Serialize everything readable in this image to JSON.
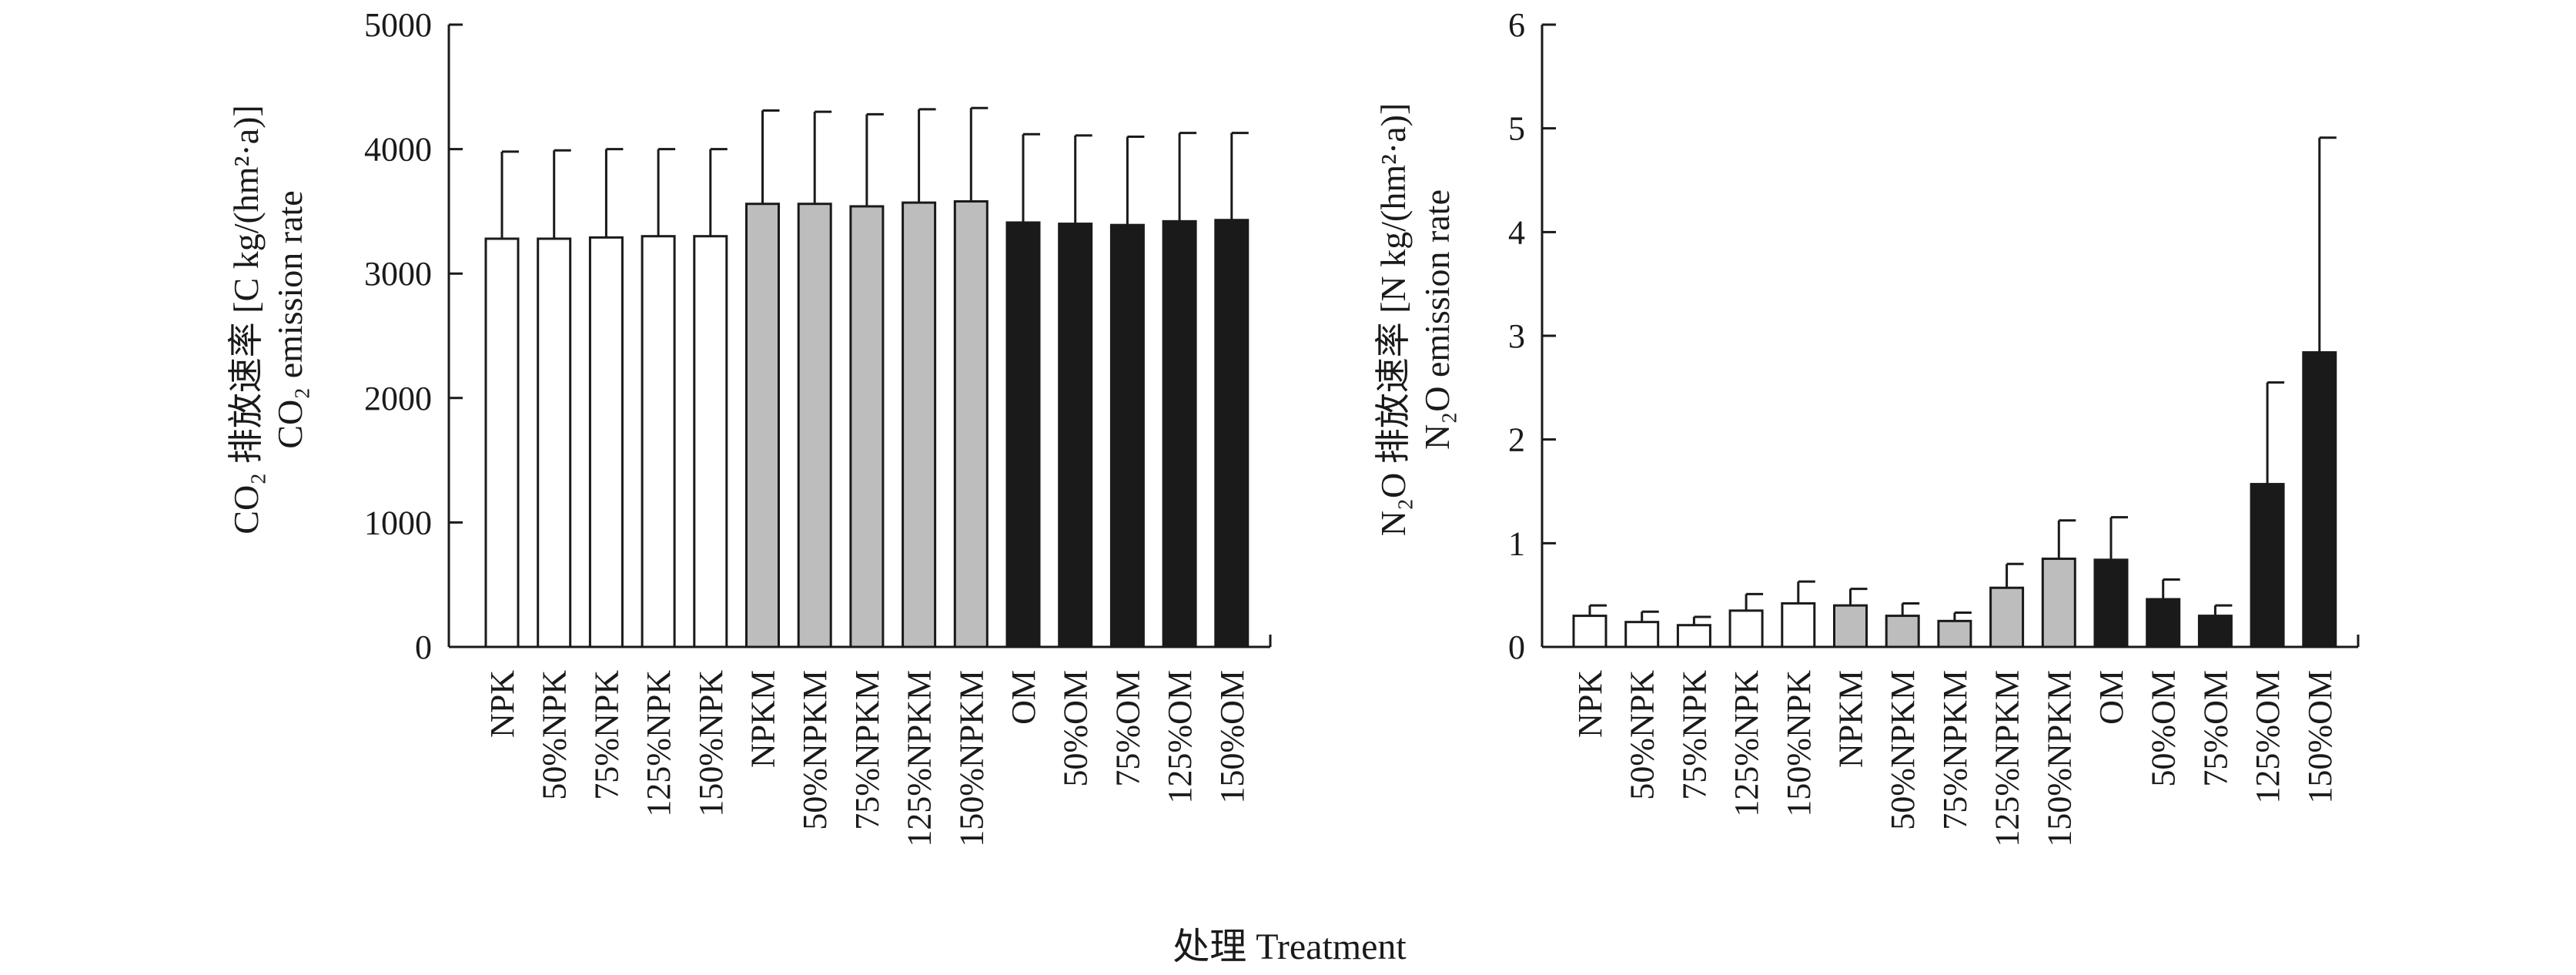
{
  "chart_data": [
    {
      "type": "bar",
      "title": "",
      "ylabel_cn": "CO₂ 排放速率 [C kg/(hm²·a)]",
      "ylabel_en": "CO₂ emission rate",
      "ylim": [
        0,
        5000
      ],
      "yticks": [
        "0",
        "1000",
        "2000",
        "3000",
        "4000",
        "5000"
      ],
      "yticks_values": [
        0,
        1000,
        2000,
        3000,
        4000,
        5000
      ],
      "categories": [
        "NPK",
        "50%NPK",
        "75%NPK",
        "125%NPK",
        "150%NPK",
        "NPKM",
        "50%NPKM",
        "75%NPKM",
        "125%NPKM",
        "150%NPKM",
        "OM",
        "50%OM",
        "75%OM",
        "125%OM",
        "150%OM"
      ],
      "values": [
        3280,
        3280,
        3290,
        3300,
        3300,
        3560,
        3560,
        3540,
        3570,
        3580,
        3410,
        3400,
        3390,
        3420,
        3430
      ],
      "errors": [
        700,
        710,
        710,
        700,
        700,
        750,
        740,
        740,
        750,
        750,
        710,
        710,
        710,
        710,
        700
      ],
      "groups": [
        "white",
        "white",
        "white",
        "white",
        "white",
        "gray",
        "gray",
        "gray",
        "gray",
        "gray",
        "black",
        "black",
        "black",
        "black",
        "black"
      ]
    },
    {
      "type": "bar",
      "title": "",
      "ylabel_cn": "N₂O 排放速率 [N kg/(hm²·a)]",
      "ylabel_en": "N₂O emission rate",
      "ylim": [
        0,
        6
      ],
      "yticks": [
        "0",
        "1",
        "2",
        "3",
        "4",
        "5",
        "6"
      ],
      "yticks_values": [
        0,
        1,
        2,
        3,
        4,
        5,
        6
      ],
      "categories": [
        "NPK",
        "50%NPK",
        "75%NPK",
        "125%NPK",
        "150%NPK",
        "NPKM",
        "50%NPKM",
        "75%NPKM",
        "125%NPKM",
        "150%NPKM",
        "OM",
        "50%OM",
        "75%OM",
        "125%OM",
        "150%OM"
      ],
      "values": [
        0.3,
        0.24,
        0.21,
        0.35,
        0.42,
        0.4,
        0.3,
        0.25,
        0.57,
        0.85,
        0.84,
        0.46,
        0.3,
        1.57,
        2.84
      ],
      "errors": [
        0.1,
        0.1,
        0.08,
        0.16,
        0.21,
        0.16,
        0.12,
        0.08,
        0.23,
        0.37,
        0.41,
        0.19,
        0.1,
        0.98,
        2.07
      ],
      "groups": [
        "white",
        "white",
        "white",
        "white",
        "white",
        "gray",
        "gray",
        "gray",
        "gray",
        "gray",
        "black",
        "black",
        "black",
        "black",
        "black"
      ]
    }
  ],
  "xaxis_title": "处理 Treatment",
  "colors": {
    "white": "#ffffff",
    "gray": "#bdbdbd",
    "black": "#1a1a1a",
    "line": "#1a1a1a"
  }
}
